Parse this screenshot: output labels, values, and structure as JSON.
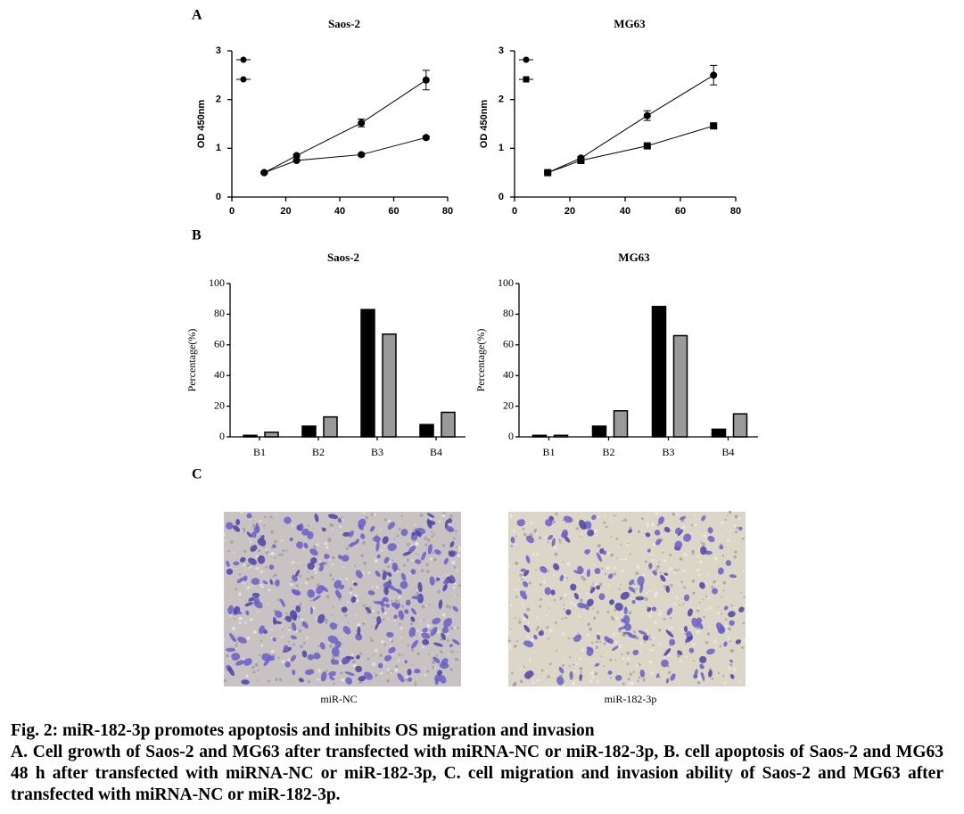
{
  "panels": [
    "A",
    "B",
    "C"
  ],
  "chart_data": [
    {
      "type": "line",
      "title": "Saos-2",
      "ylabel": "OD 450nm",
      "x": [
        12,
        24,
        48,
        72
      ],
      "series": [
        {
          "color": "#000000",
          "marker": "circle",
          "values": [
            0.5,
            0.85,
            1.52,
            2.4
          ],
          "errors": [
            0.02,
            0.03,
            0.08,
            0.2
          ]
        },
        {
          "color": "#000000",
          "marker": "circle",
          "values": [
            0.5,
            0.75,
            0.87,
            1.22
          ],
          "errors": [
            0.02,
            0.02,
            0.03,
            0.03
          ]
        }
      ],
      "xlim": [
        0,
        80
      ],
      "ylim": [
        0,
        3
      ],
      "xticks": [
        0,
        20,
        40,
        60,
        80
      ],
      "yticks": [
        0,
        1,
        2,
        3
      ]
    },
    {
      "type": "line",
      "title": "MG63",
      "ylabel": "OD 450nm",
      "x": [
        12,
        24,
        48,
        72
      ],
      "series": [
        {
          "color": "#000000",
          "marker": "circle",
          "values": [
            0.5,
            0.8,
            1.67,
            2.5
          ],
          "errors": [
            0.02,
            0.03,
            0.1,
            0.2
          ]
        },
        {
          "color": "#000000",
          "marker": "square",
          "values": [
            0.5,
            0.75,
            1.05,
            1.46
          ],
          "errors": [
            0.02,
            0.02,
            0.03,
            0.03
          ]
        }
      ],
      "xlim": [
        0,
        80
      ],
      "ylim": [
        0,
        3
      ],
      "xticks": [
        0,
        20,
        40,
        60,
        80
      ],
      "yticks": [
        0,
        1,
        2,
        3
      ]
    },
    {
      "type": "bar",
      "title": "Saos-2",
      "ylabel": "Percentage(%)",
      "categories": [
        "B1",
        "B2",
        "B3",
        "B4"
      ],
      "series": [
        {
          "color": "#000000",
          "values": [
            1,
            7,
            83,
            8
          ]
        },
        {
          "color": "#9a9a9a",
          "values": [
            3,
            13,
            67,
            16
          ]
        }
      ],
      "ylim": [
        0,
        100
      ],
      "yticks": [
        0,
        20,
        40,
        60,
        80,
        100
      ]
    },
    {
      "type": "bar",
      "title": "MG63",
      "ylabel": "Percentage(%)",
      "categories": [
        "B1",
        "B2",
        "B3",
        "B4"
      ],
      "series": [
        {
          "color": "#000000",
          "values": [
            1,
            7,
            85,
            5
          ]
        },
        {
          "color": "#9a9a9a",
          "values": [
            1,
            17,
            66,
            15
          ]
        }
      ],
      "ylim": [
        0,
        100
      ],
      "yticks": [
        0,
        20,
        40,
        60,
        80,
        100
      ]
    }
  ],
  "images": [
    {
      "label": "miR-NC"
    },
    {
      "label": "miR-182-3p"
    }
  ],
  "caption": {
    "title": "Fig. 2: miR-182-3p promotes apoptosis and inhibits OS migration and invasion",
    "text": "A. Cell growth of Saos-2 and MG63 after transfected with miRNA-NC or miR-182-3p, B. cell apoptosis of Saos-2 and MG63 48 h after transfected with miRNA-NC or miR-182-3p, C. cell migration and invasion ability of Saos-2 and MG63 after transfected with miRNA-NC or miR-182-3p."
  }
}
